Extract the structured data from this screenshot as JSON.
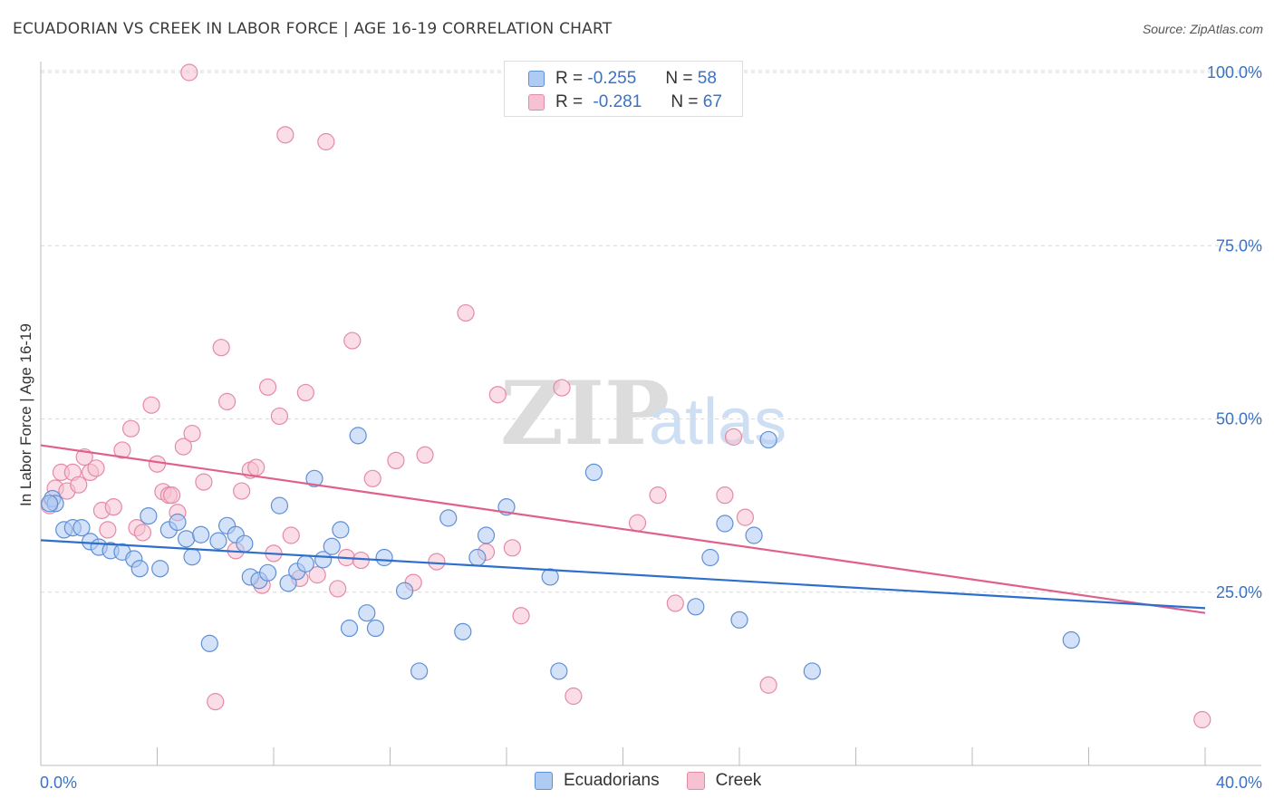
{
  "header": {
    "title": "ECUADORIAN VS CREEK IN LABOR FORCE | AGE 16-19 CORRELATION CHART",
    "source": "Source: ZipAtlas.com"
  },
  "watermark": {
    "zip": "ZIP",
    "atlas": "atlas"
  },
  "legend": {
    "rows": [
      {
        "r_label": "R =",
        "r_value": "-0.255",
        "n_label": "N =",
        "n_value": "58"
      },
      {
        "r_label": "R =",
        "r_value": "-0.281",
        "n_label": "N =",
        "n_value": "67"
      }
    ]
  },
  "bottom_legend": {
    "ecuadorians": "Ecuadorians",
    "creek": "Creek"
  },
  "colors": {
    "blue_fill": "#aecbf3",
    "blue_stroke": "#5f8fd6",
    "blue_line": "#2e6fcc",
    "pink_fill": "#f6c1d1",
    "pink_stroke": "#e58aa6",
    "pink_line": "#e0608b",
    "tick_label": "#3a72c4",
    "grid": "#d8d8d8"
  },
  "chart_data": {
    "type": "scatter",
    "title": "ECUADORIAN VS CREEK IN LABOR FORCE | AGE 16-19 CORRELATION CHART",
    "xlabel": "",
    "ylabel": "In Labor Force | Age 16-19",
    "xlim": [
      0,
      40
    ],
    "ylim": [
      0,
      102
    ],
    "x_tick_labels": [
      "0.0%",
      "40.0%"
    ],
    "y_ticks": [
      25,
      50,
      75,
      100
    ],
    "y_tick_labels": [
      "25.0%",
      "50.0%",
      "75.0%",
      "100.0%"
    ],
    "grid": true,
    "series": [
      {
        "name": "Ecuadorians",
        "r": -0.255,
        "n": 58,
        "trend": {
          "x": [
            0,
            40
          ],
          "y": [
            32.5,
            22.7
          ]
        },
        "points": [
          [
            0.4,
            38.5
          ],
          [
            0.5,
            37.8
          ],
          [
            0.8,
            34.0
          ],
          [
            1.1,
            34.3
          ],
          [
            1.4,
            34.3
          ],
          [
            1.7,
            32.3
          ],
          [
            2.0,
            31.5
          ],
          [
            2.4,
            31.0
          ],
          [
            2.8,
            30.8
          ],
          [
            3.2,
            29.8
          ],
          [
            3.4,
            28.4
          ],
          [
            3.7,
            36.0
          ],
          [
            4.1,
            28.4
          ],
          [
            4.4,
            34.0
          ],
          [
            4.7,
            35.1
          ],
          [
            5.0,
            32.7
          ],
          [
            5.2,
            30.1
          ],
          [
            5.5,
            33.3
          ],
          [
            5.8,
            17.6
          ],
          [
            6.1,
            32.4
          ],
          [
            6.4,
            34.6
          ],
          [
            6.7,
            33.3
          ],
          [
            7.0,
            32.0
          ],
          [
            7.2,
            27.2
          ],
          [
            7.5,
            26.7
          ],
          [
            7.8,
            27.8
          ],
          [
            8.2,
            37.5
          ],
          [
            8.5,
            26.3
          ],
          [
            8.8,
            28.0
          ],
          [
            9.1,
            29.1
          ],
          [
            9.4,
            41.4
          ],
          [
            9.7,
            29.7
          ],
          [
            10.0,
            31.6
          ],
          [
            10.3,
            34.0
          ],
          [
            10.6,
            19.8
          ],
          [
            10.9,
            47.6
          ],
          [
            11.2,
            22.0
          ],
          [
            11.5,
            19.8
          ],
          [
            11.8,
            30.0
          ],
          [
            12.5,
            25.2
          ],
          [
            13.0,
            13.6
          ],
          [
            14.0,
            35.7
          ],
          [
            14.5,
            19.3
          ],
          [
            15.0,
            30.0
          ],
          [
            15.3,
            33.2
          ],
          [
            16.0,
            37.3
          ],
          [
            17.5,
            27.2
          ],
          [
            17.8,
            13.6
          ],
          [
            19.0,
            42.3
          ],
          [
            22.5,
            22.9
          ],
          [
            23.0,
            30.0
          ],
          [
            23.5,
            34.9
          ],
          [
            24.0,
            21.0
          ],
          [
            24.5,
            33.2
          ],
          [
            25.0,
            47.0
          ],
          [
            26.5,
            13.6
          ],
          [
            35.4,
            18.1
          ],
          [
            0.3,
            37.8
          ]
        ]
      },
      {
        "name": "Creek",
        "r": -0.281,
        "n": 67,
        "trend": {
          "x": [
            0,
            40
          ],
          "y": [
            46.2,
            22.0
          ]
        },
        "points": [
          [
            0.3,
            37.5
          ],
          [
            0.5,
            40.0
          ],
          [
            0.7,
            42.3
          ],
          [
            0.9,
            39.6
          ],
          [
            1.1,
            42.3
          ],
          [
            1.3,
            40.5
          ],
          [
            1.5,
            44.5
          ],
          [
            1.7,
            42.3
          ],
          [
            1.9,
            42.9
          ],
          [
            2.1,
            36.8
          ],
          [
            2.3,
            34.0
          ],
          [
            2.5,
            37.3
          ],
          [
            2.8,
            45.5
          ],
          [
            3.1,
            48.6
          ],
          [
            3.3,
            34.3
          ],
          [
            3.5,
            33.6
          ],
          [
            3.8,
            52.0
          ],
          [
            4.0,
            43.5
          ],
          [
            4.2,
            39.5
          ],
          [
            4.4,
            39.0
          ],
          [
            4.7,
            36.5
          ],
          [
            4.9,
            46.0
          ],
          [
            5.2,
            47.9
          ],
          [
            5.6,
            40.9
          ],
          [
            6.0,
            9.2
          ],
          [
            6.2,
            60.3
          ],
          [
            6.4,
            52.5
          ],
          [
            6.7,
            31.0
          ],
          [
            6.9,
            39.6
          ],
          [
            7.2,
            42.6
          ],
          [
            7.4,
            43.0
          ],
          [
            7.6,
            26.0
          ],
          [
            7.8,
            54.6
          ],
          [
            8.0,
            30.6
          ],
          [
            8.2,
            50.4
          ],
          [
            8.6,
            33.2
          ],
          [
            8.9,
            27.0
          ],
          [
            9.1,
            53.8
          ],
          [
            9.5,
            27.5
          ],
          [
            9.8,
            90.0
          ],
          [
            10.2,
            25.5
          ],
          [
            10.5,
            30.0
          ],
          [
            10.7,
            61.3
          ],
          [
            11.0,
            29.6
          ],
          [
            11.4,
            41.4
          ],
          [
            12.2,
            44.0
          ],
          [
            12.8,
            26.4
          ],
          [
            13.2,
            44.8
          ],
          [
            13.6,
            29.4
          ],
          [
            14.6,
            65.3
          ],
          [
            15.3,
            30.8
          ],
          [
            15.7,
            53.5
          ],
          [
            16.2,
            31.4
          ],
          [
            16.5,
            21.6
          ],
          [
            17.9,
            54.5
          ],
          [
            18.3,
            10.0
          ],
          [
            20.5,
            35.0
          ],
          [
            21.2,
            39.0
          ],
          [
            21.8,
            23.4
          ],
          [
            23.5,
            39.0
          ],
          [
            23.8,
            47.4
          ],
          [
            24.2,
            35.8
          ],
          [
            25.0,
            11.6
          ],
          [
            5.1,
            100.0
          ],
          [
            8.4,
            91.0
          ],
          [
            39.9,
            6.6
          ],
          [
            4.5,
            39.0
          ]
        ]
      }
    ]
  }
}
